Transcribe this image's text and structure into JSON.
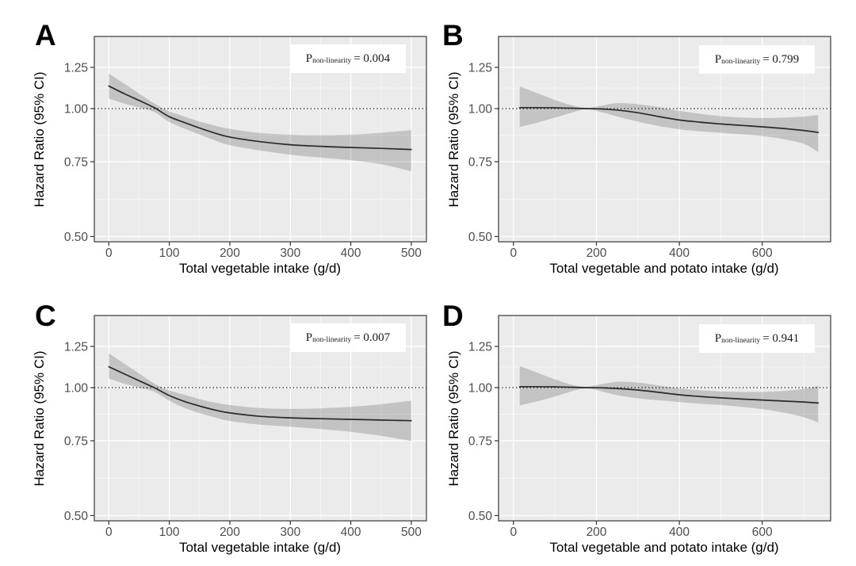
{
  "figure": {
    "panel_background": "#ebebeb",
    "grid_major_color": "#ffffff",
    "grid_minor_color": "rgba(255,255,255,0.55)",
    "band_color": "rgba(0,0,0,0.17)",
    "curve_color": "#2a2a2a",
    "border_color": "#474747",
    "tick_color": "#333333",
    "tick_label_color": "#4d4d4d",
    "y_axis_label": "Hazard Ratio (95% CI)"
  },
  "chart_data": [
    {
      "type": "line",
      "panel_letter": "A",
      "xlabel": "Total vegetable intake (g/d)",
      "ylabel": "Hazard Ratio (95% CI)",
      "y_scale": "log",
      "grid": true,
      "legend": "none",
      "xlim": [
        -24,
        525
      ],
      "ylim": [
        0.486,
        1.478
      ],
      "x_ticks": [
        0,
        100,
        200,
        300,
        400,
        500
      ],
      "y_ticks": [
        0.5,
        0.75,
        1.0,
        1.25
      ],
      "y_tick_labels": [
        "0.50",
        "0.75",
        "1.00",
        "1.25"
      ],
      "reference_line": 1.0,
      "p_nonlinearity": 0.004,
      "p_label": {
        "main": "P",
        "sub": "non-linearity",
        "rest": "= 0.004"
      },
      "series": {
        "x": [
          0,
          25,
          50,
          75,
          100,
          125,
          150,
          175,
          200,
          250,
          300,
          350,
          400,
          450,
          500
        ],
        "hr": [
          1.13,
          1.085,
          1.045,
          1.005,
          0.957,
          0.927,
          0.9,
          0.876,
          0.857,
          0.836,
          0.822,
          0.815,
          0.81,
          0.806,
          0.801
        ],
        "hi": [
          1.21,
          1.145,
          1.085,
          1.028,
          0.985,
          0.958,
          0.932,
          0.912,
          0.896,
          0.876,
          0.868,
          0.866,
          0.868,
          0.877,
          0.89
        ],
        "lo": [
          1.055,
          1.028,
          1.006,
          0.982,
          0.93,
          0.897,
          0.869,
          0.842,
          0.82,
          0.797,
          0.779,
          0.767,
          0.756,
          0.74,
          0.712
        ]
      }
    },
    {
      "type": "line",
      "panel_letter": "B",
      "xlabel": "Total vegetable and potato intake (g/d)",
      "ylabel": "Hazard Ratio (95% CI)",
      "y_scale": "log",
      "grid": true,
      "legend": "none",
      "xlim": [
        -36,
        765
      ],
      "ylim": [
        0.486,
        1.478
      ],
      "x_ticks": [
        0,
        200,
        400,
        600
      ],
      "y_ticks": [
        0.5,
        0.75,
        1.0,
        1.25
      ],
      "y_tick_labels": [
        "0.50",
        "0.75",
        "1.00",
        "1.25"
      ],
      "reference_line": 1.0,
      "p_nonlinearity": 0.799,
      "p_label": {
        "main": "P",
        "sub": "non-linearity",
        "rest": "= 0.799"
      },
      "series": {
        "x": [
          15,
          60,
          100,
          140,
          175,
          210,
          250,
          300,
          350,
          400,
          450,
          500,
          550,
          600,
          650,
          700,
          735
        ],
        "hr": [
          1.005,
          1.005,
          1.004,
          1.002,
          1.0,
          0.998,
          0.992,
          0.978,
          0.958,
          0.94,
          0.929,
          0.92,
          0.913,
          0.906,
          0.898,
          0.888,
          0.879
        ],
        "hi": [
          1.128,
          1.085,
          1.048,
          1.018,
          1.004,
          1.015,
          1.03,
          1.024,
          1.008,
          0.988,
          0.972,
          0.96,
          0.953,
          0.95,
          0.952,
          0.958,
          0.965
        ],
        "lo": [
          0.905,
          0.928,
          0.952,
          0.978,
          0.996,
          0.982,
          0.958,
          0.932,
          0.91,
          0.894,
          0.884,
          0.877,
          0.87,
          0.862,
          0.848,
          0.826,
          0.79
        ]
      }
    },
    {
      "type": "line",
      "panel_letter": "C",
      "xlabel": "Total vegetable intake (g/d)",
      "ylabel": "Hazard Ratio (95% CI)",
      "y_scale": "log",
      "grid": true,
      "legend": "none",
      "xlim": [
        -24,
        525
      ],
      "ylim": [
        0.486,
        1.478
      ],
      "x_ticks": [
        0,
        100,
        200,
        300,
        400,
        500
      ],
      "y_ticks": [
        0.5,
        0.75,
        1.0,
        1.25
      ],
      "y_tick_labels": [
        "0.50",
        "0.75",
        "1.00",
        "1.25"
      ],
      "reference_line": 1.0,
      "p_nonlinearity": 0.007,
      "p_label": {
        "main": "P",
        "sub": "non-linearity",
        "rest": "= 0.007"
      },
      "series": {
        "x": [
          0,
          25,
          50,
          75,
          100,
          125,
          150,
          175,
          200,
          250,
          300,
          350,
          400,
          450,
          500
        ],
        "hr": [
          1.12,
          1.078,
          1.038,
          1.0,
          0.958,
          0.928,
          0.905,
          0.886,
          0.872,
          0.856,
          0.849,
          0.845,
          0.842,
          0.839,
          0.836
        ],
        "hi": [
          1.205,
          1.14,
          1.08,
          1.022,
          0.985,
          0.962,
          0.94,
          0.922,
          0.91,
          0.895,
          0.891,
          0.894,
          0.901,
          0.914,
          0.932
        ],
        "lo": [
          1.05,
          1.022,
          1.0,
          0.978,
          0.932,
          0.896,
          0.871,
          0.851,
          0.835,
          0.818,
          0.809,
          0.799,
          0.787,
          0.77,
          0.749
        ]
      }
    },
    {
      "type": "line",
      "panel_letter": "D",
      "xlabel": "Total vegetable and potato intake (g/d)",
      "ylabel": "Hazard Ratio (95% CI)",
      "y_scale": "log",
      "grid": true,
      "legend": "none",
      "xlim": [
        -36,
        765
      ],
      "ylim": [
        0.486,
        1.478
      ],
      "x_ticks": [
        0,
        200,
        400,
        600
      ],
      "y_ticks": [
        0.5,
        0.75,
        1.0,
        1.25
      ],
      "y_tick_labels": [
        "0.50",
        "0.75",
        "1.00",
        "1.25"
      ],
      "reference_line": 1.0,
      "p_nonlinearity": 0.941,
      "p_label": {
        "main": "P",
        "sub": "non-linearity",
        "rest": "= 0.941"
      },
      "series": {
        "x": [
          15,
          60,
          100,
          140,
          175,
          210,
          250,
          300,
          350,
          400,
          450,
          500,
          550,
          600,
          650,
          700,
          735
        ],
        "hr": [
          1.005,
          1.005,
          1.004,
          1.002,
          1.0,
          0.999,
          0.995,
          0.987,
          0.975,
          0.962,
          0.953,
          0.946,
          0.94,
          0.935,
          0.93,
          0.925,
          0.92
        ],
        "hi": [
          1.125,
          1.082,
          1.046,
          1.016,
          1.005,
          1.018,
          1.032,
          1.028,
          1.012,
          0.996,
          0.986,
          0.98,
          0.977,
          0.977,
          0.982,
          0.993,
          1.01
        ],
        "lo": [
          0.908,
          0.93,
          0.953,
          0.98,
          0.996,
          0.981,
          0.96,
          0.944,
          0.934,
          0.925,
          0.917,
          0.91,
          0.901,
          0.89,
          0.874,
          0.852,
          0.828
        ]
      }
    }
  ]
}
